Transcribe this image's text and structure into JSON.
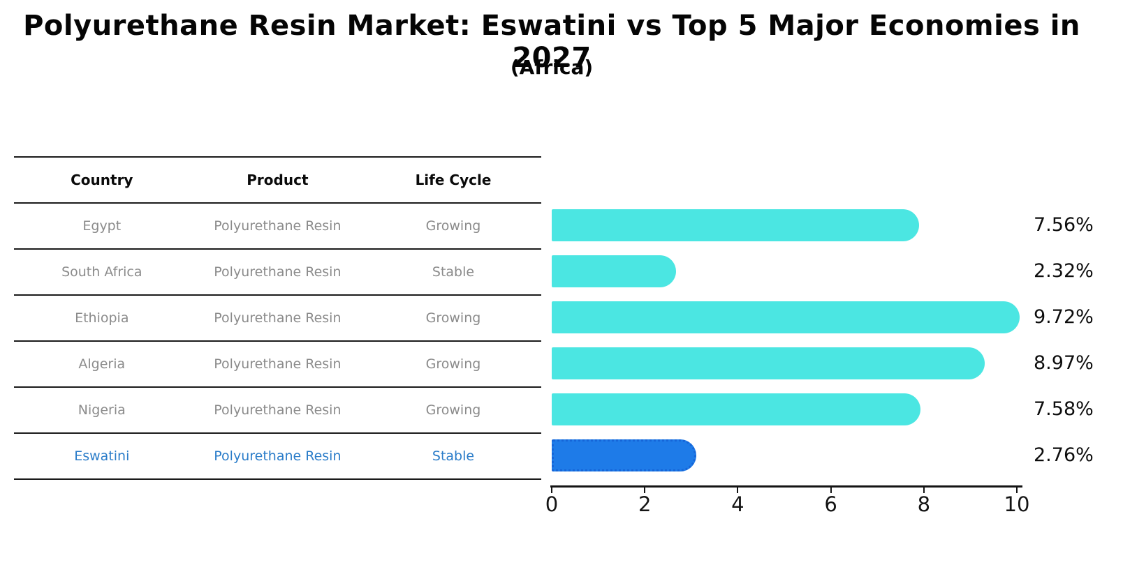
{
  "title": "Polyurethane Resin Market: Eswatini vs Top 5 Major Economies in 2027",
  "subtitle": "(Africa)",
  "table": {
    "columns": [
      "Country",
      "Product",
      "Life Cycle"
    ],
    "rows": [
      {
        "country": "Egypt",
        "product": "Polyurethane Resin",
        "life_cycle": "Growing",
        "highlight": false
      },
      {
        "country": "South Africa",
        "product": "Polyurethane Resin",
        "life_cycle": "Stable",
        "highlight": false
      },
      {
        "country": "Ethiopia",
        "product": "Polyurethane Resin",
        "life_cycle": "Growing",
        "highlight": false
      },
      {
        "country": "Algeria",
        "product": "Polyurethane Resin",
        "life_cycle": "Growing",
        "highlight": false
      },
      {
        "country": "Nigeria",
        "product": "Polyurethane Resin",
        "life_cycle": "Growing",
        "highlight": false
      },
      {
        "country": "Eswatini",
        "product": "Polyurethane Resin",
        "life_cycle": "Stable",
        "highlight": true
      }
    ]
  },
  "chart_data": {
    "type": "bar",
    "orientation": "horizontal",
    "categories": [
      "Egypt",
      "South Africa",
      "Ethiopia",
      "Algeria",
      "Nigeria",
      "Eswatini"
    ],
    "values": [
      7.56,
      2.32,
      9.72,
      8.97,
      7.58,
      2.76
    ],
    "value_labels": [
      "7.56%",
      "2.32%",
      "9.72%",
      "8.97%",
      "7.58%",
      "2.76%"
    ],
    "xlim": [
      0,
      10
    ],
    "x_ticks": [
      "0",
      "2",
      "4",
      "6",
      "8",
      "10"
    ],
    "grid": false,
    "legend": "none",
    "bar_color": "#4be6e2",
    "highlight_color": "#1e7be8",
    "highlight_index": 5
  },
  "colors": {
    "highlight_text": "#2a7cc9",
    "row_text": "#8b8b8b",
    "axis": "#141414"
  }
}
